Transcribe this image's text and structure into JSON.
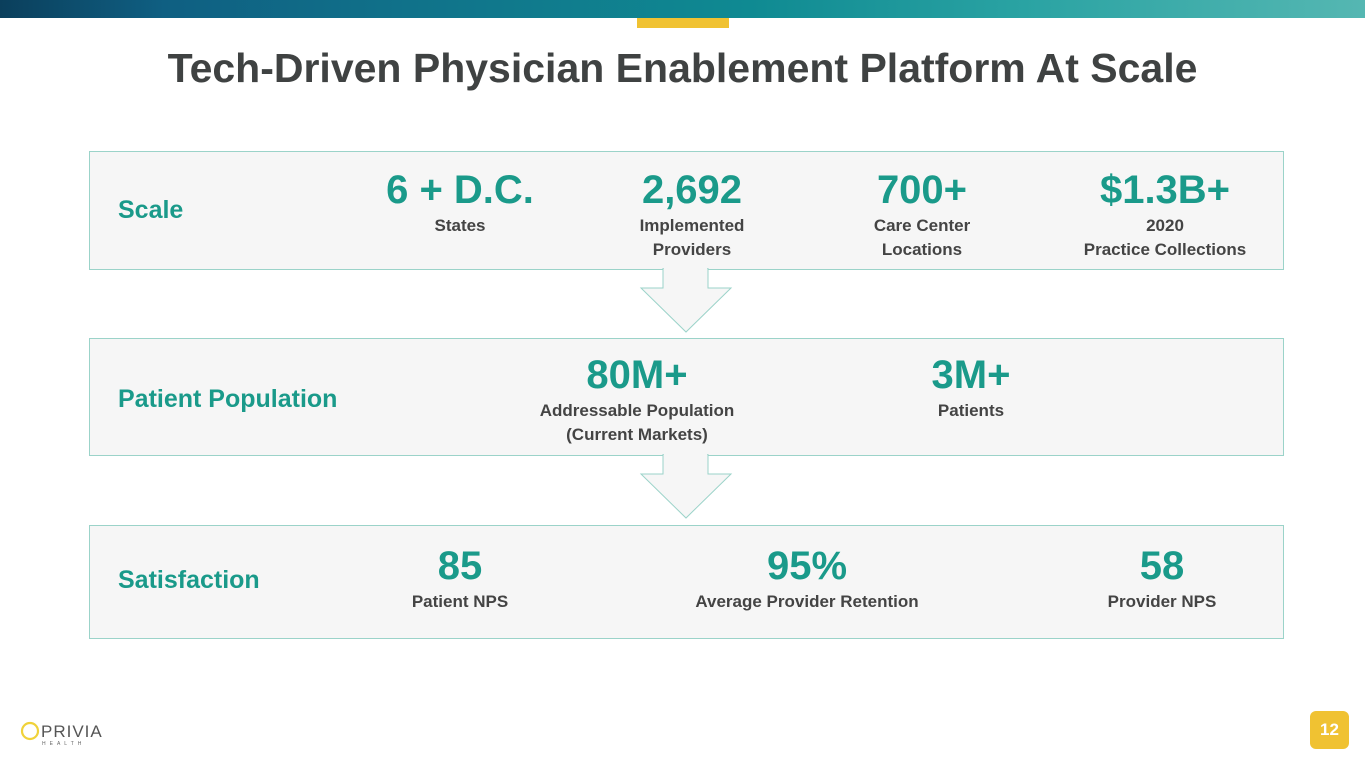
{
  "title": "Tech-Driven Physician Enablement Platform At Scale",
  "rows": [
    {
      "label": "Scale",
      "stats": [
        {
          "value": "6 + D.C.",
          "caption": [
            "States"
          ]
        },
        {
          "value": "2,692",
          "caption": [
            "Implemented",
            "Providers"
          ]
        },
        {
          "value": "700+",
          "caption": [
            "Care Center",
            "Locations"
          ]
        },
        {
          "value": "$1.3B+",
          "caption": [
            "2020",
            "Practice Collections"
          ]
        }
      ]
    },
    {
      "label": "Patient Population",
      "stats": [
        {
          "value": "80M+",
          "caption": [
            "Addressable Population",
            "(Current Markets)"
          ]
        },
        {
          "value": "3M+",
          "caption": [
            "Patients"
          ]
        }
      ]
    },
    {
      "label": "Satisfaction",
      "stats": [
        {
          "value": "85",
          "caption": [
            "Patient NPS"
          ]
        },
        {
          "value": "95%",
          "caption": [
            "Average Provider Retention"
          ]
        },
        {
          "value": "58",
          "caption": [
            "Provider NPS"
          ]
        }
      ]
    }
  ],
  "logo": {
    "name": "PRIVIA",
    "sub": "HEALTH"
  },
  "page_number": "12",
  "colors": {
    "teal": "#1a9a8a",
    "yellow": "#f0c232",
    "text": "#3f4242"
  }
}
